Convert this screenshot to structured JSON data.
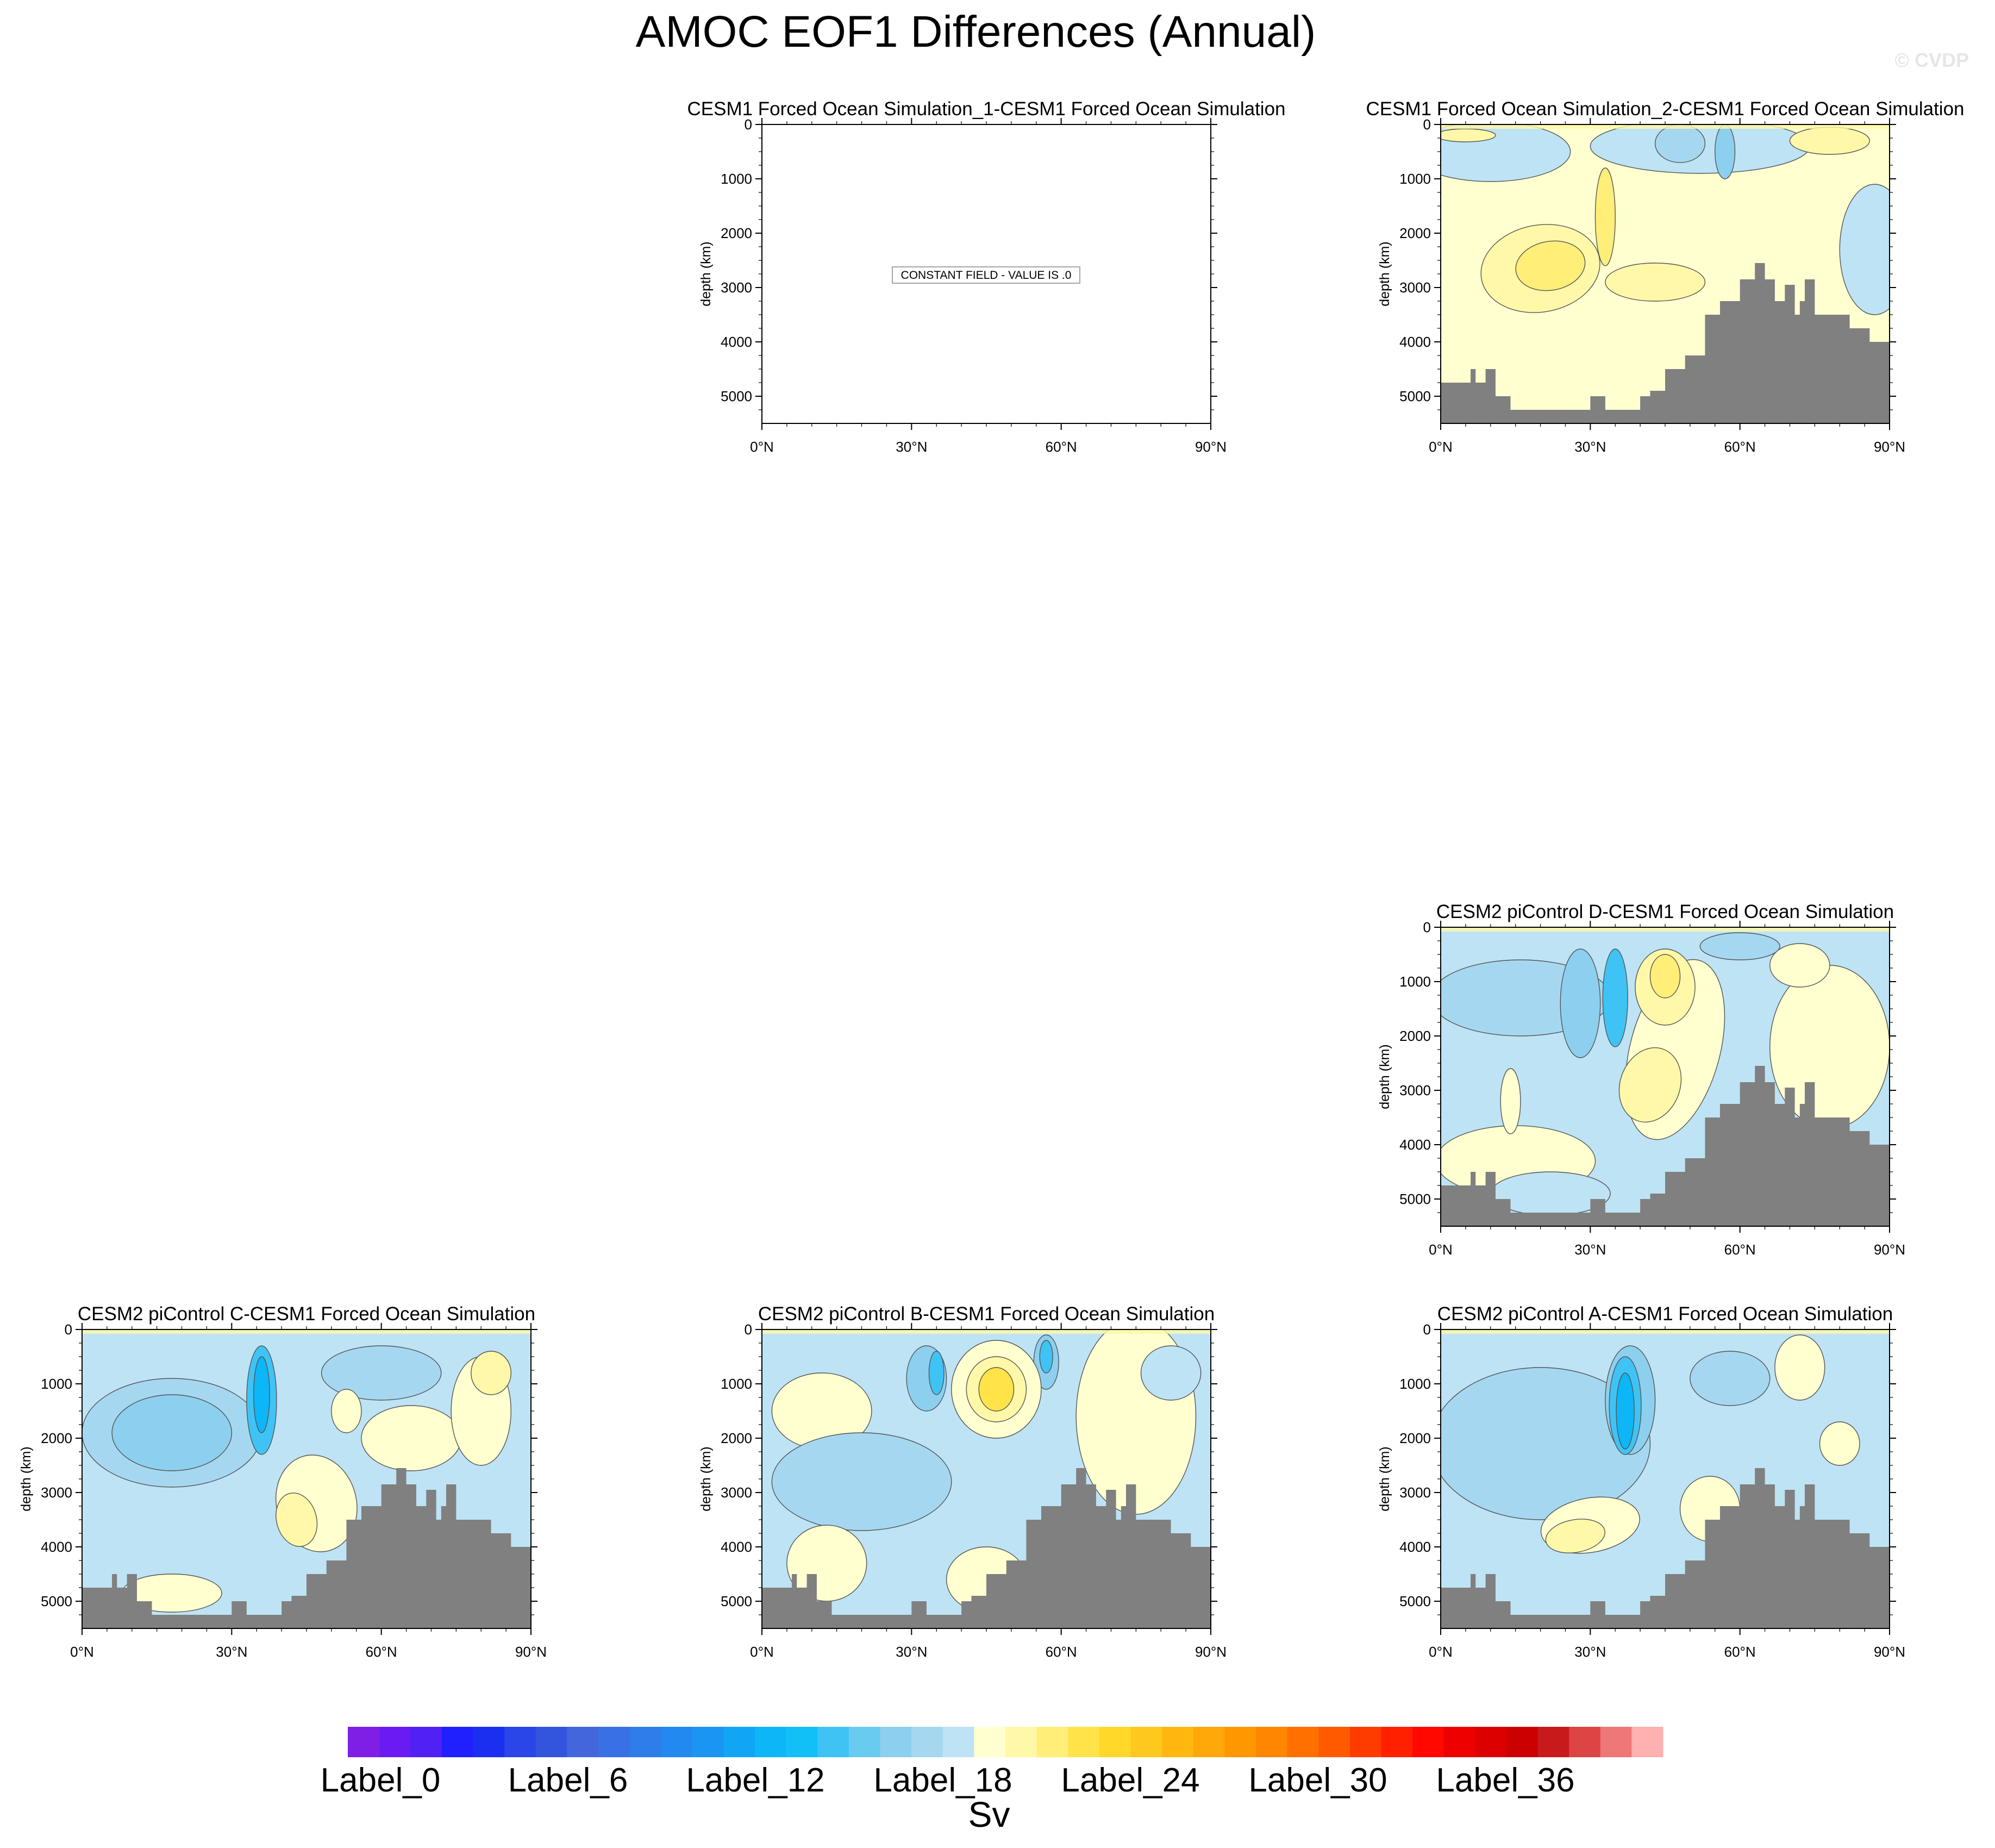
{
  "title": "AMOC EOF1 Differences (Annual)",
  "watermark": "© CVDP",
  "chart_data": [
    {
      "type": "contour",
      "title": "CESM1 Forced Ocean Simulation_1-CESM1 Forced Ocean Simulation",
      "ylabel": "depth (km)",
      "xticks": [
        "0°N",
        "30°N",
        "60°N",
        "90°N"
      ],
      "yticks": [
        "0",
        "1000",
        "2000",
        "3000",
        "4000",
        "5000"
      ],
      "xlim": [
        0,
        90
      ],
      "ylim": [
        5500,
        0
      ],
      "pattern": "constant",
      "constant_note": "CONSTANT FIELD - VALUE IS .0"
    },
    {
      "type": "contour",
      "title": "CESM1 Forced Ocean Simulation_2-CESM1 Forced Ocean Simulation",
      "ylabel": "depth (km)",
      "xticks": [
        "0°N",
        "30°N",
        "60°N",
        "90°N"
      ],
      "yticks": [
        "0",
        "1000",
        "2000",
        "3000",
        "4000",
        "5000"
      ],
      "xlim": [
        0,
        90
      ],
      "ylim": [
        5500,
        0
      ],
      "pattern": "p2"
    },
    {
      "type": "contour",
      "title": "CESM2 piControl D-CESM1 Forced Ocean Simulation",
      "ylabel": "depth (km)",
      "xticks": [
        "0°N",
        "30°N",
        "60°N",
        "90°N"
      ],
      "yticks": [
        "0",
        "1000",
        "2000",
        "3000",
        "4000",
        "5000"
      ],
      "xlim": [
        0,
        90
      ],
      "ylim": [
        5500,
        0
      ],
      "pattern": "d"
    },
    {
      "type": "contour",
      "title": "CESM2 piControl C-CESM1 Forced Ocean Simulation",
      "ylabel": "depth (km)",
      "xticks": [
        "0°N",
        "30°N",
        "60°N",
        "90°N"
      ],
      "yticks": [
        "0",
        "1000",
        "2000",
        "3000",
        "4000",
        "5000"
      ],
      "xlim": [
        0,
        90
      ],
      "ylim": [
        5500,
        0
      ],
      "pattern": "c"
    },
    {
      "type": "contour",
      "title": "CESM2 piControl B-CESM1 Forced Ocean Simulation",
      "ylabel": "depth (km)",
      "xticks": [
        "0°N",
        "30°N",
        "60°N",
        "90°N"
      ],
      "yticks": [
        "0",
        "1000",
        "2000",
        "3000",
        "4000",
        "5000"
      ],
      "xlim": [
        0,
        90
      ],
      "ylim": [
        5500,
        0
      ],
      "pattern": "b"
    },
    {
      "type": "contour",
      "title": "CESM2 piControl A-CESM1 Forced Ocean Simulation",
      "ylabel": "depth (km)",
      "xticks": [
        "0°N",
        "30°N",
        "60°N",
        "90°N"
      ],
      "yticks": [
        "0",
        "1000",
        "2000",
        "3000",
        "4000",
        "5000"
      ],
      "xlim": [
        0,
        90
      ],
      "ylim": [
        5500,
        0
      ],
      "pattern": "a"
    }
  ],
  "bathymetry": {
    "lat": [
      0,
      3,
      6,
      7,
      9,
      11,
      14,
      30,
      33,
      35,
      37,
      40,
      42,
      45,
      49,
      53,
      56,
      58,
      60,
      63,
      65,
      67,
      69,
      71,
      72,
      73,
      75,
      80,
      82,
      86,
      88,
      90
    ],
    "depth": [
      4750,
      4750,
      4500,
      4750,
      4500,
      5000,
      5250,
      5000,
      5250,
      5250,
      5250,
      5000,
      4900,
      4500,
      4250,
      3500,
      3250,
      3250,
      2850,
      2550,
      2850,
      3250,
      2950,
      3500,
      3250,
      2850,
      3500,
      3500,
      3750,
      4000,
      4000,
      4000
    ]
  },
  "colorbar": {
    "colors": [
      "#7f1fe6",
      "#6a1bf2",
      "#5020f5",
      "#2020ff",
      "#1a2ff0",
      "#2a45e8",
      "#3355dd",
      "#4466dd",
      "#3a70e6",
      "#2f7de8",
      "#2289f0",
      "#1a96f2",
      "#10a5f5",
      "#0db6f7",
      "#12c0f8",
      "#3fc3f5",
      "#6acbf0",
      "#8dcfee",
      "#a5d8f0",
      "#bde3f5",
      "#ffffd0",
      "#fff8a8",
      "#ffee78",
      "#ffe348",
      "#ffd82a",
      "#ffc81d",
      "#ffb810",
      "#ffa80a",
      "#ff9800",
      "#ff8600",
      "#ff7000",
      "#ff5a00",
      "#ff3c00",
      "#ff2000",
      "#ff0800",
      "#ee0000",
      "#dd0000",
      "#cc0000",
      "#c81a1a",
      "#dd4444",
      "#ee7777",
      "#ffb0b0"
    ],
    "labels": [
      "Label_0",
      "Label_6",
      "Label_12",
      "Label_18",
      "Label_24",
      "Label_30",
      "Label_36"
    ],
    "unit": "Sv"
  }
}
